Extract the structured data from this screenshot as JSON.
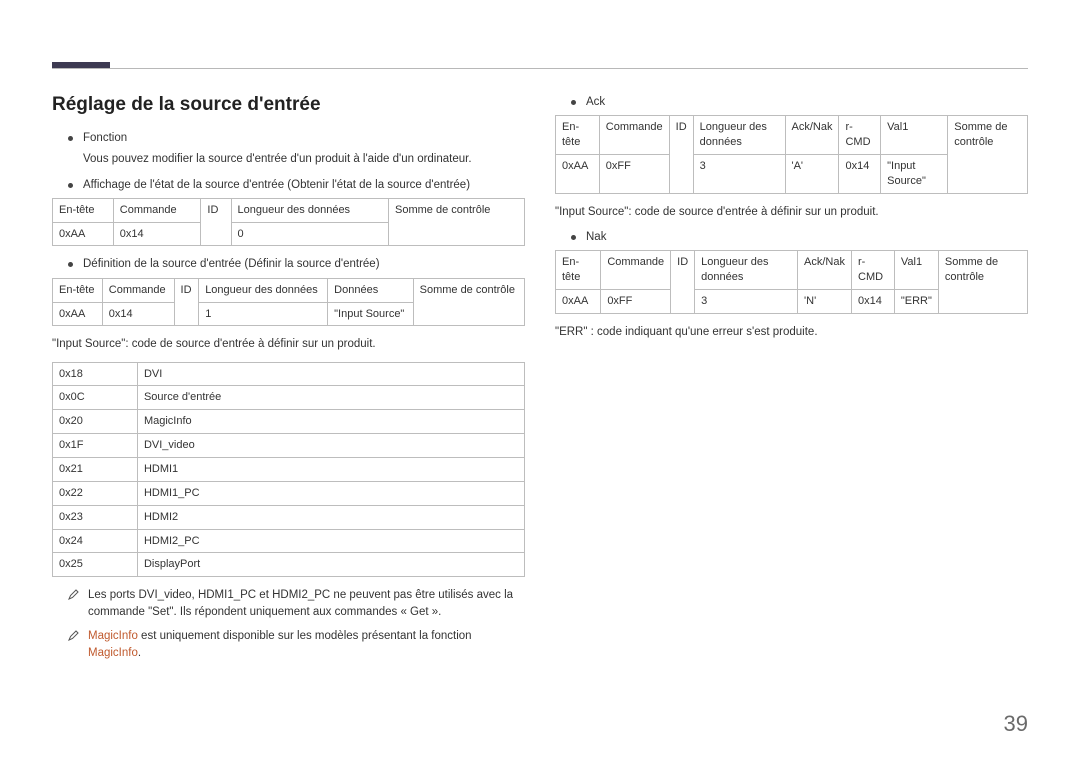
{
  "pageNumber": "39",
  "left": {
    "heading": "Réglage de la source d'entrée",
    "b1_label": "Fonction",
    "b1_text": "Vous pouvez modifier la source d'entrée d'un produit à l'aide d'un ordinateur.",
    "b2": "Affichage de l'état de la source d'entrée (Obtenir l'état de la source d'entrée)",
    "t1": {
      "h": [
        "En-tête",
        "Commande",
        "ID",
        "Longueur des données",
        "Somme de contrôle"
      ],
      "r": [
        "0xAA",
        "0x14",
        "",
        "0",
        ""
      ]
    },
    "b3": "Définition de la source d'entrée (Définir la source d'entrée)",
    "t2": {
      "h": [
        "En-tête",
        "Commande",
        "ID",
        "Longueur des données",
        "Données",
        "Somme de contrôle"
      ],
      "r": [
        "0xAA",
        "0x14",
        "",
        "1",
        "\"Input Source\"",
        ""
      ]
    },
    "line1": "\"Input Source\": code de source d'entrée à définir sur un produit.",
    "t3": [
      [
        "0x18",
        "DVI"
      ],
      [
        "0x0C",
        "Source d'entrée"
      ],
      [
        "0x20",
        "MagicInfo"
      ],
      [
        "0x1F",
        "DVI_video"
      ],
      [
        "0x21",
        "HDMI1"
      ],
      [
        "0x22",
        "HDMI1_PC"
      ],
      [
        "0x23",
        "HDMI2"
      ],
      [
        "0x24",
        "HDMI2_PC"
      ],
      [
        "0x25",
        "DisplayPort"
      ]
    ],
    "note1": "Les ports DVI_video, HDMI1_PC et HDMI2_PC ne peuvent pas être utilisés avec la commande \"Set\". Ils répondent uniquement aux commandes « Get ».",
    "note2_a": "MagicInfo",
    "note2_b": " est uniquement disponible sur les modèles présentant la fonction ",
    "note2_c": "MagicInfo",
    "note2_d": "."
  },
  "right": {
    "b_ack": "Ack",
    "t_ack": {
      "h": [
        "En-tête",
        "Commande",
        "ID",
        "Longueur des données",
        "Ack/Nak",
        "r-CMD",
        "Val1",
        "Somme de contrôle"
      ],
      "r": [
        "0xAA",
        "0xFF",
        "",
        "3",
        "'A'",
        "0x14",
        "\"Input Source\"",
        ""
      ]
    },
    "line_ack": "\"Input Source\": code de source d'entrée à définir sur un produit.",
    "b_nak": "Nak",
    "t_nak": {
      "h": [
        "En-tête",
        "Commande",
        "ID",
        "Longueur des données",
        "Ack/Nak",
        "r-CMD",
        "Val1",
        "Somme de contrôle"
      ],
      "r": [
        "0xAA",
        "0xFF",
        "",
        "3",
        "'N'",
        "0x14",
        "\"ERR\"",
        ""
      ]
    },
    "line_nak": "\"ERR\" : code indiquant qu'une erreur s'est produite."
  }
}
